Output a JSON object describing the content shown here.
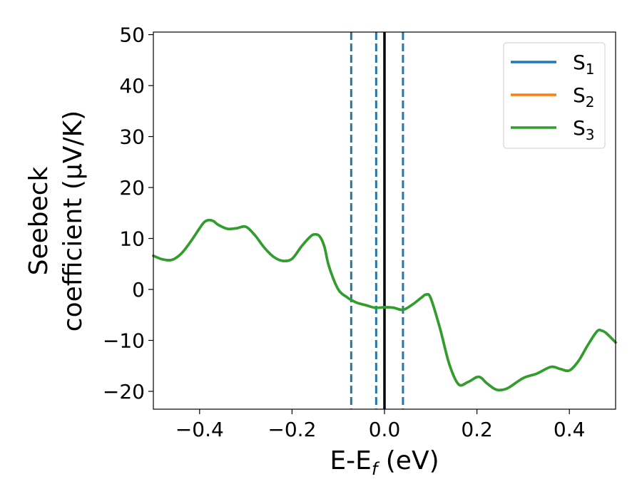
{
  "chart_data": {
    "type": "line",
    "xlabel": "E-E",
    "xlabel_sub": "f",
    "xlabel_unit": " (eV)",
    "ylabel_line1": "Seebeck",
    "ylabel_line2": "coefficient  (μV/K)",
    "xlim": [
      -0.5,
      0.5
    ],
    "ylim": [
      -23.5,
      50.5
    ],
    "xticks": [
      -0.4,
      -0.2,
      0.0,
      0.2,
      0.4
    ],
    "xtick_labels": [
      "−0.4",
      "−0.2",
      "0.0",
      "0.2",
      "0.4"
    ],
    "yticks": [
      -20,
      -10,
      0,
      10,
      20,
      30,
      40,
      50
    ],
    "ytick_labels": [
      "−20",
      "−10",
      "0",
      "10",
      "20",
      "30",
      "40",
      "50"
    ],
    "grid": false,
    "legend_position": "top-right",
    "series": [
      {
        "name": "S",
        "sub": "1",
        "color": "#1f77b4",
        "x": [
          -0.5,
          -0.48,
          -0.46,
          -0.44,
          -0.42,
          -0.4,
          -0.39,
          -0.38,
          -0.37,
          -0.36,
          -0.34,
          -0.32,
          -0.3,
          -0.28,
          -0.26,
          -0.24,
          -0.22,
          -0.2,
          -0.18,
          -0.16,
          -0.15,
          -0.14,
          -0.13,
          -0.12,
          -0.1,
          -0.08,
          -0.073,
          -0.06,
          -0.04,
          -0.02,
          0.0,
          0.02,
          0.04,
          0.06,
          0.08,
          0.09,
          0.1,
          0.12,
          0.14,
          0.16,
          0.18,
          0.2,
          0.21,
          0.22,
          0.24,
          0.255,
          0.27,
          0.3,
          0.33,
          0.36,
          0.38,
          0.4,
          0.42,
          0.44,
          0.46,
          0.47,
          0.48,
          0.5
        ],
        "y": [
          6.6,
          5.9,
          5.8,
          7.0,
          9.3,
          12.0,
          13.2,
          13.6,
          13.4,
          12.7,
          11.9,
          12.0,
          12.3,
          10.6,
          8.2,
          6.4,
          5.6,
          6.0,
          8.4,
          10.4,
          10.8,
          10.4,
          8.4,
          4.5,
          0.0,
          -1.6,
          -2.0,
          -2.6,
          -3.1,
          -3.6,
          -3.5,
          -3.6,
          -4.0,
          -3.0,
          -1.6,
          -1.0,
          -1.7,
          -7.6,
          -14.6,
          -18.6,
          -18.2,
          -17.2,
          -17.4,
          -18.3,
          -19.6,
          -19.7,
          -19.2,
          -17.4,
          -16.5,
          -15.2,
          -15.6,
          -15.9,
          -14.0,
          -10.9,
          -8.2,
          -8.1,
          -8.6,
          -10.4
        ]
      },
      {
        "name": "S",
        "sub": "2",
        "color": "#ff7f0e",
        "x": [
          -0.5,
          -0.48,
          -0.46,
          -0.44,
          -0.42,
          -0.4,
          -0.39,
          -0.38,
          -0.37,
          -0.36,
          -0.34,
          -0.32,
          -0.3,
          -0.28,
          -0.26,
          -0.24,
          -0.22,
          -0.2,
          -0.18,
          -0.16,
          -0.15,
          -0.14,
          -0.13,
          -0.12,
          -0.1,
          -0.08,
          -0.073,
          -0.06,
          -0.04,
          -0.02,
          0.0,
          0.02,
          0.04,
          0.06,
          0.08,
          0.09,
          0.1,
          0.12,
          0.14,
          0.16,
          0.18,
          0.2,
          0.21,
          0.22,
          0.24,
          0.255,
          0.27,
          0.3,
          0.33,
          0.36,
          0.38,
          0.4,
          0.42,
          0.44,
          0.46,
          0.47,
          0.48,
          0.5
        ],
        "y": [
          6.6,
          5.9,
          5.8,
          7.0,
          9.3,
          12.0,
          13.2,
          13.6,
          13.4,
          12.7,
          11.9,
          12.0,
          12.3,
          10.6,
          8.2,
          6.4,
          5.6,
          6.0,
          8.4,
          10.4,
          10.8,
          10.4,
          8.4,
          4.5,
          0.0,
          -1.6,
          -2.0,
          -2.6,
          -3.1,
          -3.6,
          -3.5,
          -3.6,
          -4.0,
          -3.0,
          -1.6,
          -1.0,
          -1.7,
          -7.6,
          -14.6,
          -18.6,
          -18.2,
          -17.2,
          -17.4,
          -18.3,
          -19.6,
          -19.7,
          -19.2,
          -17.4,
          -16.5,
          -15.2,
          -15.6,
          -15.9,
          -14.0,
          -10.9,
          -8.2,
          -8.1,
          -8.6,
          -10.4
        ]
      },
      {
        "name": "S",
        "sub": "3",
        "color": "#2ca02c",
        "x": [
          -0.5,
          -0.48,
          -0.46,
          -0.44,
          -0.42,
          -0.4,
          -0.39,
          -0.38,
          -0.37,
          -0.36,
          -0.34,
          -0.32,
          -0.3,
          -0.28,
          -0.26,
          -0.24,
          -0.22,
          -0.2,
          -0.18,
          -0.16,
          -0.15,
          -0.14,
          -0.13,
          -0.12,
          -0.1,
          -0.08,
          -0.073,
          -0.06,
          -0.04,
          -0.02,
          0.0,
          0.02,
          0.04,
          0.06,
          0.08,
          0.09,
          0.1,
          0.12,
          0.14,
          0.16,
          0.18,
          0.2,
          0.21,
          0.22,
          0.24,
          0.255,
          0.27,
          0.3,
          0.33,
          0.36,
          0.38,
          0.4,
          0.42,
          0.44,
          0.46,
          0.47,
          0.48,
          0.5
        ],
        "y": [
          6.6,
          5.9,
          5.8,
          7.0,
          9.3,
          12.0,
          13.2,
          13.6,
          13.4,
          12.7,
          11.9,
          12.0,
          12.3,
          10.6,
          8.2,
          6.4,
          5.6,
          6.0,
          8.4,
          10.4,
          10.8,
          10.4,
          8.4,
          4.5,
          0.0,
          -1.6,
          -2.0,
          -2.6,
          -3.1,
          -3.6,
          -3.5,
          -3.6,
          -4.0,
          -3.0,
          -1.6,
          -1.0,
          -1.7,
          -7.6,
          -14.6,
          -18.6,
          -18.2,
          -17.2,
          -17.4,
          -18.3,
          -19.6,
          -19.7,
          -19.2,
          -17.4,
          -16.5,
          -15.2,
          -15.6,
          -15.9,
          -14.0,
          -10.9,
          -8.2,
          -8.1,
          -8.6,
          -10.4
        ]
      }
    ],
    "vlines": [
      {
        "x": -0.072,
        "style": "dashed",
        "color": "#1f77b4"
      },
      {
        "x": -0.018,
        "style": "dashed",
        "color": "#1f77b4"
      },
      {
        "x": 0.0,
        "style": "solid",
        "color": "#000000"
      },
      {
        "x": 0.04,
        "style": "dashed",
        "color": "#1f77b4"
      }
    ]
  }
}
